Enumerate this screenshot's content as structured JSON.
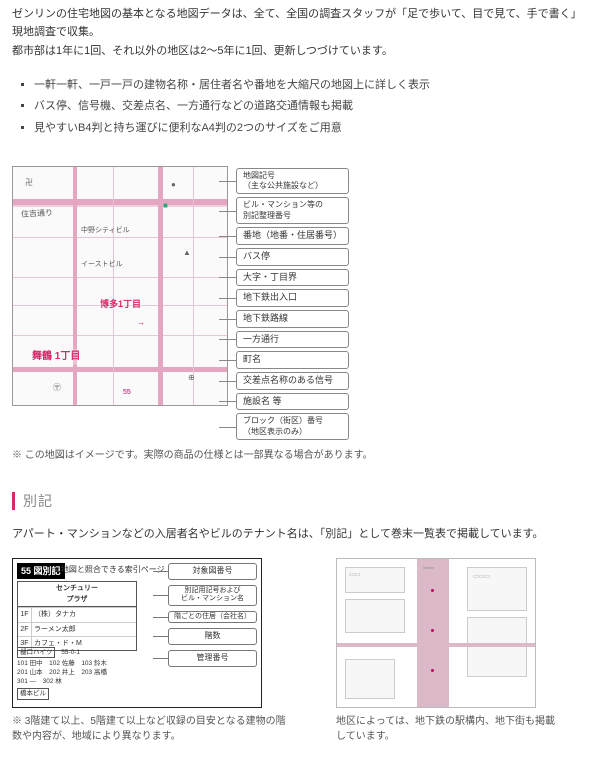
{
  "intro": {
    "p1": "ゼンリンの住宅地図の基本となる地図データは、全て、全国の調査スタッフが「足で歩いて、目で見て、手で書く」現地調査で収集。",
    "p2": "都市部は1年に1回、それ以外の地区は2〜5年に1回、更新しつづけています。"
  },
  "features": [
    "一軒一軒、一戸一戸の建物名称・居住者名や番地を大縮尺の地図上に詳しく表示",
    "バス停、信号機、交差点名、一方通行などの道路交通情報も掲載",
    "見やすいB4判と持ち運びに便利なA4判の2つのサイズをご用意"
  ],
  "map": {
    "note": "※ この地図はイメージです。実際の商品の仕様とは一部異なる場合があります。",
    "area_label_top": "住吉通り",
    "area_label_mid": "博多1丁目",
    "area_label_big": "舞鶴 1丁目",
    "bldg1": "中野シティビル",
    "bldg2": "イーストビル",
    "callouts": [
      "地図記号\n（主な公共施設など）",
      "ビル・マンション等の\n別記整理番号",
      "番地（地番・住居番号）",
      "バス停",
      "大字・丁目界",
      "地下鉄出入口",
      "地下鉄路線",
      "一方通行",
      "町名",
      "交差点名称のある信号",
      "施設名 等",
      "ブロック（街区）番号\n（地区表示のみ）"
    ]
  },
  "section": {
    "title": "別記",
    "desc": "アパート・マンションなどの入居者名やビルのテナント名は、「別記」として巻末一覧表で掲載しています。"
  },
  "appendix": {
    "heading_num": "55",
    "heading_text": "図別記",
    "heading_sub": "▲地図と照合できる索引ページ",
    "building_name": "センチュリー\nプラザ",
    "rows": [
      [
        "1F",
        "（株）タナカ"
      ],
      [
        "2F",
        "ラーメン太郎"
      ],
      [
        "3F",
        "カフェ・ド・M"
      ]
    ],
    "list_title": "樋口ハイツ",
    "list_addr": "55-0-1",
    "list_items": [
      "101 田中",
      "102 佐藤",
      "103 鈴木",
      "201 山本",
      "202 井上",
      "203 高橋",
      "301 —",
      "302 林"
    ],
    "bottom_name": "橋本ビル",
    "right_callouts": [
      "対象図番号",
      "別記用記号および\nビル・マンション名",
      "階ごとの住居（会社名）",
      "階数",
      "管理番号"
    ],
    "caption": "※ 3階建て以上、5階建て以上など収録の目安となる建物の階数や内容が、地域により異なります。"
  },
  "subway": {
    "caption": "地区によっては、地下鉄の駅構内、地下街も掲載しています。"
  },
  "colors": {
    "accent": "#d62a6b",
    "road": "#e4a6c0",
    "border": "#888888"
  }
}
